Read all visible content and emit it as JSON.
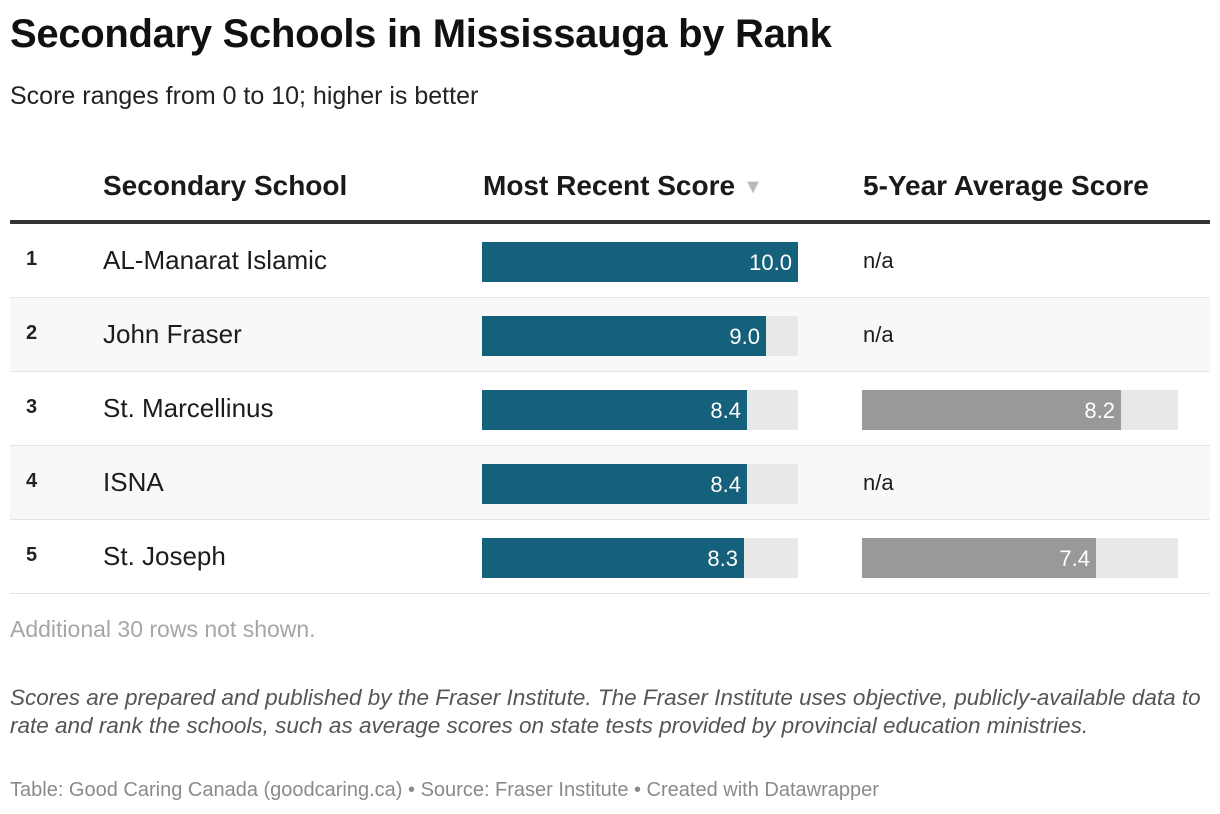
{
  "title": "Secondary Schools in Mississauga by Rank",
  "subtitle": "Score ranges from 0 to 10; higher is better",
  "columns": {
    "school": "Secondary School",
    "recent": "Most Recent Score",
    "sort_icon": "triangle-down-icon",
    "average": "5-Year Average Score"
  },
  "colors": {
    "recent_bar": "#15607a",
    "average_bar": "#999999",
    "track": "#e8e8e8"
  },
  "chart_data": {
    "type": "table",
    "score_range": [
      0,
      10
    ],
    "rows": [
      {
        "rank": "1",
        "school": "AL-Manarat Islamic",
        "recent": 10.0,
        "recent_label": "10.0",
        "average": null,
        "average_label": "n/a"
      },
      {
        "rank": "2",
        "school": "John Fraser",
        "recent": 9.0,
        "recent_label": "9.0",
        "average": null,
        "average_label": "n/a"
      },
      {
        "rank": "3",
        "school": "St. Marcellinus",
        "recent": 8.4,
        "recent_label": "8.4",
        "average": 8.2,
        "average_label": "8.2"
      },
      {
        "rank": "4",
        "school": "ISNA",
        "recent": 8.4,
        "recent_label": "8.4",
        "average": null,
        "average_label": "n/a"
      },
      {
        "rank": "5",
        "school": "St. Joseph",
        "recent": 8.3,
        "recent_label": "8.3",
        "average": 7.4,
        "average_label": "7.4"
      }
    ]
  },
  "more_rows": "Additional 30 rows not shown.",
  "note": "Scores are prepared and published by the Fraser Institute. The Fraser Institute uses objective, publicly-available data to rate and rank the schools, such as average scores on state tests provided by provincial education ministries.",
  "footer": "Table: Good Caring Canada (goodcaring.ca) • Source: Fraser Institute • Created with Datawrapper"
}
